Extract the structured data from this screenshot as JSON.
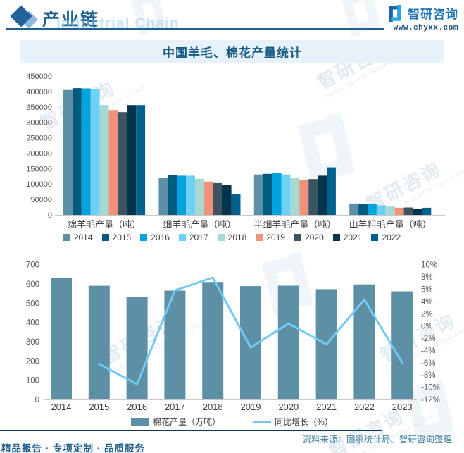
{
  "header": {
    "title": "产业链",
    "title_watermark": "Industrial Chain",
    "brand": "智研咨询",
    "website": "www.chyxx.com"
  },
  "section_title": "中国羊毛、棉花产量统计",
  "watermark": {
    "brand": "智研咨询",
    "tagline": "INTELLIGENCE RESEARCH GROUP"
  },
  "footer": {
    "source": "资料来源：国家统计局、智研咨询整理",
    "slogan": "精品报告 · 专项定制 · 品质服务"
  },
  "chart_data": [
    {
      "type": "bar",
      "title": "中国羊毛、棉花产量统计",
      "categories": [
        "绵羊毛产量（吨）",
        "细羊毛产量（吨）",
        "半细羊毛产量（吨）",
        "山羊粗毛产量（吨）"
      ],
      "series": [
        {
          "name": "2014",
          "color": "#5d8fa6",
          "values": [
            405000,
            120000,
            131000,
            37000
          ]
        },
        {
          "name": "2015",
          "color": "#005c7f",
          "values": [
            411000,
            129000,
            133000,
            35000
          ]
        },
        {
          "name": "2016",
          "color": "#00a3dd",
          "values": [
            410000,
            127000,
            136000,
            35000
          ]
        },
        {
          "name": "2017",
          "color": "#6fd0f5",
          "values": [
            408000,
            127000,
            131000,
            31000
          ]
        },
        {
          "name": "2018",
          "color": "#a5d9d2",
          "values": [
            356000,
            117000,
            119000,
            27000
          ]
        },
        {
          "name": "2019",
          "color": "#ef9279",
          "values": [
            340000,
            108000,
            113000,
            23000
          ]
        },
        {
          "name": "2020",
          "color": "#3a5560",
          "values": [
            333000,
            103000,
            116000,
            24000
          ]
        },
        {
          "name": "2021",
          "color": "#04354d",
          "values": [
            356000,
            97000,
            127000,
            20000
          ]
        },
        {
          "name": "2022",
          "color": "#00618c",
          "values": [
            356000,
            67000,
            154000,
            23000
          ]
        }
      ],
      "ylim": [
        0,
        450000
      ],
      "ytick_step": 50000,
      "grid": false,
      "legend_position": "bottom"
    },
    {
      "type": "bar+line",
      "x": [
        "2014",
        "2015",
        "2016",
        "2017",
        "2018",
        "2019",
        "2020",
        "2021",
        "2022",
        "2023"
      ],
      "bar_series": {
        "name": "棉花产量（万吨）",
        "color": "#5d90a5",
        "values": [
          629.9,
          590.7,
          534.3,
          565.3,
          610.2,
          588.9,
          591,
          573.1,
          597.7,
          561.8
        ]
      },
      "line_series": {
        "name": "同比增长（%）",
        "color": "#74c9f2",
        "values": [
          null,
          -6.2,
          -9.5,
          5.8,
          7.9,
          -3.5,
          0.4,
          -3.0,
          4.3,
          -6.0
        ]
      },
      "ylim_left": [
        0,
        700
      ],
      "ytick_step_left": 100,
      "ylim_right": [
        -12,
        10
      ],
      "ytick_step_right": 2,
      "grid": false,
      "legend_position": "bottom"
    }
  ]
}
